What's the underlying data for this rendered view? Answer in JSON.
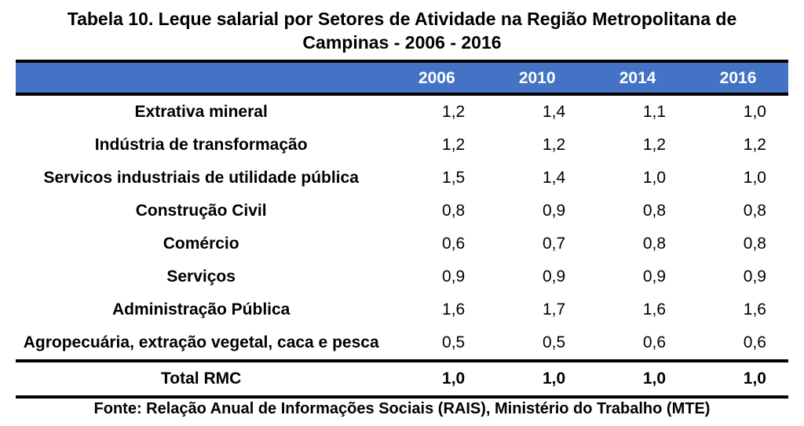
{
  "title": "Tabela 10. Leque salarial por Setores de Atividade na Região Metropolitana de Campinas - 2006 - 2016",
  "years": [
    "2006",
    "2010",
    "2014",
    "2016"
  ],
  "rowLabels": [
    "Extrativa mineral",
    "Indústria de transformação",
    "Servicos industriais de utilidade pública",
    "Construção Civil",
    "Comércio",
    "Serviços",
    "Administração Pública",
    "Agropecuária, extração vegetal, caca e pesca"
  ],
  "rowValues": [
    [
      "1,2",
      "1,4",
      "1,1",
      "1,0"
    ],
    [
      "1,2",
      "1,2",
      "1,2",
      "1,2"
    ],
    [
      "1,5",
      "1,4",
      "1,0",
      "1,0"
    ],
    [
      "0,8",
      "0,9",
      "0,8",
      "0,8"
    ],
    [
      "0,6",
      "0,7",
      "0,8",
      "0,8"
    ],
    [
      "0,9",
      "0,9",
      "0,9",
      "0,9"
    ],
    [
      "1,6",
      "1,7",
      "1,6",
      "1,6"
    ],
    [
      "0,5",
      "0,5",
      "0,6",
      "0,6"
    ]
  ],
  "totalLabel": "Total RMC",
  "totalValues": [
    "1,0",
    "1,0",
    "1,0",
    "1,0"
  ],
  "source": "Fonte: Relação Anual de Informações Sociais (RAIS), Ministério do Trabalho (MTE)",
  "colors": {
    "header_bg": "#4472c4",
    "header_fg": "#ffffff",
    "border": "#000000",
    "background": "#ffffff"
  },
  "font": {
    "family": "Arial",
    "title_size": 23,
    "cell_size": 21,
    "source_size": 20
  }
}
